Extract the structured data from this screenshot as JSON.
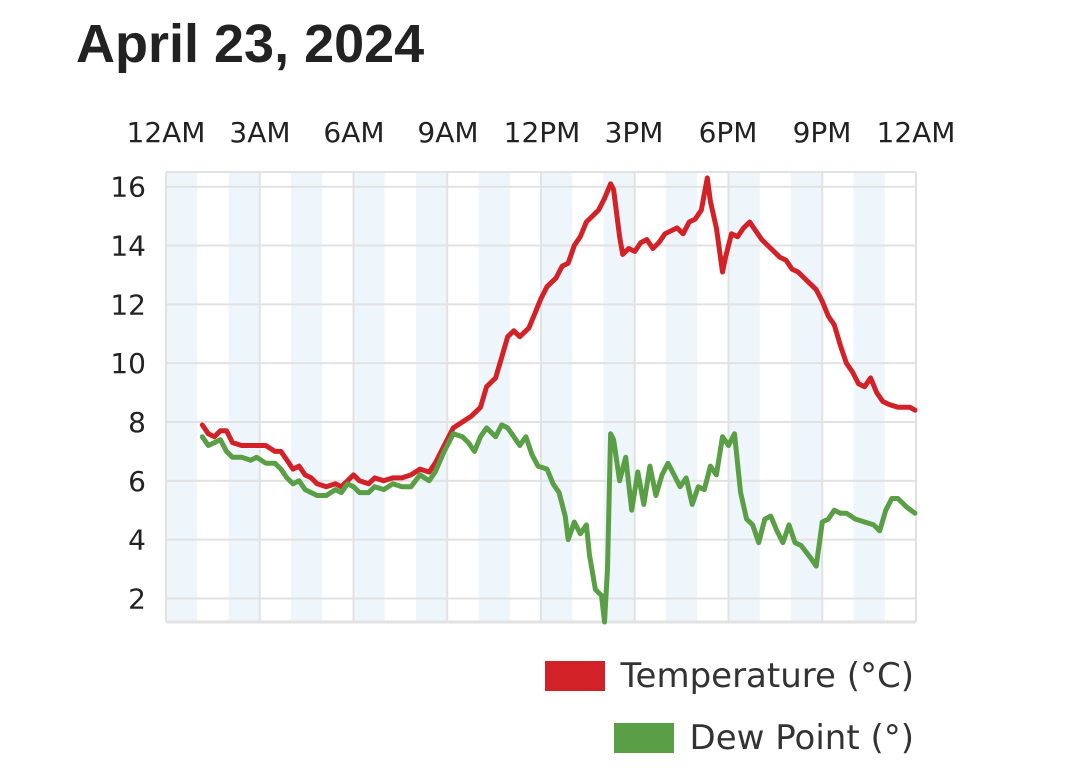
{
  "chart_data": {
    "type": "line",
    "title": "April 23, 2024",
    "x_unit": "hours",
    "xlim": [
      0,
      24
    ],
    "ylim": [
      1,
      16.5
    ],
    "x_ticks": [
      {
        "value": 0,
        "label": "12AM"
      },
      {
        "value": 3,
        "label": "3AM"
      },
      {
        "value": 6,
        "label": "6AM"
      },
      {
        "value": 9,
        "label": "9AM"
      },
      {
        "value": 12,
        "label": "12PM"
      },
      {
        "value": 15,
        "label": "3PM"
      },
      {
        "value": 18,
        "label": "6PM"
      },
      {
        "value": 21,
        "label": "9PM"
      },
      {
        "value": 24,
        "label": "12AM"
      }
    ],
    "y_ticks": [
      2,
      4,
      6,
      8,
      10,
      12,
      14,
      16
    ],
    "grid": true,
    "legend_position": "bottom-right",
    "background_bands_color": "#eef5fb",
    "grid_color": "#e2e2e2",
    "series": [
      {
        "name": "Temperature (°C)",
        "color": "#d32128",
        "points": [
          [
            1.2,
            7.9
          ],
          [
            1.4,
            7.6
          ],
          [
            1.6,
            7.5
          ],
          [
            1.8,
            7.7
          ],
          [
            2.0,
            7.7
          ],
          [
            2.2,
            7.3
          ],
          [
            2.5,
            7.2
          ],
          [
            2.8,
            7.2
          ],
          [
            3.0,
            7.2
          ],
          [
            3.3,
            7.2
          ],
          [
            3.6,
            7.0
          ],
          [
            3.8,
            7.0
          ],
          [
            4.0,
            6.7
          ],
          [
            4.2,
            6.4
          ],
          [
            4.4,
            6.5
          ],
          [
            4.6,
            6.2
          ],
          [
            4.8,
            6.1
          ],
          [
            5.0,
            5.9
          ],
          [
            5.3,
            5.8
          ],
          [
            5.6,
            5.9
          ],
          [
            5.8,
            5.8
          ],
          [
            6.0,
            6.0
          ],
          [
            6.2,
            6.2
          ],
          [
            6.4,
            6.0
          ],
          [
            6.7,
            5.9
          ],
          [
            6.9,
            6.1
          ],
          [
            7.2,
            6.0
          ],
          [
            7.5,
            6.1
          ],
          [
            7.8,
            6.1
          ],
          [
            8.1,
            6.2
          ],
          [
            8.4,
            6.4
          ],
          [
            8.7,
            6.3
          ],
          [
            8.9,
            6.6
          ],
          [
            9.2,
            7.2
          ],
          [
            9.5,
            7.8
          ],
          [
            9.8,
            8.0
          ],
          [
            10.1,
            8.2
          ],
          [
            10.4,
            8.5
          ],
          [
            10.6,
            9.2
          ],
          [
            10.9,
            9.5
          ],
          [
            11.1,
            10.2
          ],
          [
            11.3,
            10.9
          ],
          [
            11.5,
            11.1
          ],
          [
            11.7,
            10.9
          ],
          [
            12.0,
            11.2
          ],
          [
            12.2,
            11.7
          ],
          [
            12.4,
            12.2
          ],
          [
            12.6,
            12.6
          ],
          [
            12.9,
            12.9
          ],
          [
            13.1,
            13.3
          ],
          [
            13.3,
            13.4
          ],
          [
            13.5,
            14.0
          ],
          [
            13.7,
            14.3
          ],
          [
            13.9,
            14.8
          ],
          [
            14.1,
            15.0
          ],
          [
            14.3,
            15.2
          ],
          [
            14.5,
            15.6
          ],
          [
            14.7,
            16.1
          ],
          [
            14.8,
            15.9
          ],
          [
            15.0,
            14.3
          ],
          [
            15.1,
            13.7
          ],
          [
            15.3,
            13.9
          ],
          [
            15.5,
            13.8
          ],
          [
            15.7,
            14.1
          ],
          [
            15.9,
            14.2
          ],
          [
            16.1,
            13.9
          ],
          [
            16.3,
            14.1
          ],
          [
            16.5,
            14.4
          ],
          [
            16.7,
            14.5
          ],
          [
            16.9,
            14.6
          ],
          [
            17.1,
            14.4
          ],
          [
            17.3,
            14.8
          ],
          [
            17.5,
            14.9
          ],
          [
            17.7,
            15.2
          ],
          [
            17.9,
            16.3
          ],
          [
            18.0,
            15.5
          ],
          [
            18.2,
            14.6
          ],
          [
            18.4,
            13.1
          ],
          [
            18.5,
            13.6
          ],
          [
            18.7,
            14.4
          ],
          [
            18.9,
            14.3
          ],
          [
            19.1,
            14.6
          ],
          [
            19.3,
            14.8
          ],
          [
            19.5,
            14.5
          ],
          [
            19.7,
            14.2
          ],
          [
            19.9,
            14.0
          ],
          [
            20.1,
            13.8
          ],
          [
            20.3,
            13.6
          ],
          [
            20.5,
            13.5
          ],
          [
            20.7,
            13.2
          ],
          [
            20.9,
            13.1
          ],
          [
            21.1,
            12.9
          ],
          [
            21.3,
            12.7
          ],
          [
            21.5,
            12.5
          ],
          [
            21.7,
            12.1
          ],
          [
            21.9,
            11.6
          ],
          [
            22.1,
            11.3
          ],
          [
            22.3,
            10.6
          ],
          [
            22.5,
            10.0
          ],
          [
            22.7,
            9.7
          ],
          [
            22.9,
            9.3
          ],
          [
            23.1,
            9.2
          ],
          [
            23.3,
            9.5
          ],
          [
            23.5,
            9.0
          ],
          [
            23.7,
            8.7
          ],
          [
            23.9,
            8.6
          ],
          [
            24.2,
            8.5
          ],
          [
            24.6,
            8.5
          ],
          [
            24.8,
            8.4
          ]
        ]
      },
      {
        "name": "Dew Point (°)",
        "color": "#5a9e46",
        "points": [
          [
            1.2,
            7.5
          ],
          [
            1.4,
            7.2
          ],
          [
            1.6,
            7.3
          ],
          [
            1.8,
            7.4
          ],
          [
            2.0,
            7.0
          ],
          [
            2.2,
            6.8
          ],
          [
            2.5,
            6.8
          ],
          [
            2.8,
            6.7
          ],
          [
            3.0,
            6.8
          ],
          [
            3.3,
            6.6
          ],
          [
            3.6,
            6.6
          ],
          [
            3.8,
            6.4
          ],
          [
            4.0,
            6.1
          ],
          [
            4.2,
            5.9
          ],
          [
            4.4,
            6.0
          ],
          [
            4.6,
            5.7
          ],
          [
            4.8,
            5.6
          ],
          [
            5.0,
            5.5
          ],
          [
            5.3,
            5.5
          ],
          [
            5.6,
            5.7
          ],
          [
            5.8,
            5.6
          ],
          [
            6.0,
            5.9
          ],
          [
            6.2,
            5.8
          ],
          [
            6.4,
            5.6
          ],
          [
            6.7,
            5.6
          ],
          [
            6.9,
            5.8
          ],
          [
            7.2,
            5.7
          ],
          [
            7.5,
            5.9
          ],
          [
            7.8,
            5.8
          ],
          [
            8.1,
            5.8
          ],
          [
            8.4,
            6.2
          ],
          [
            8.7,
            6.0
          ],
          [
            8.9,
            6.3
          ],
          [
            9.2,
            7.0
          ],
          [
            9.5,
            7.6
          ],
          [
            9.8,
            7.5
          ],
          [
            10.0,
            7.3
          ],
          [
            10.2,
            7.0
          ],
          [
            10.4,
            7.5
          ],
          [
            10.6,
            7.8
          ],
          [
            10.9,
            7.5
          ],
          [
            11.1,
            7.9
          ],
          [
            11.3,
            7.8
          ],
          [
            11.5,
            7.5
          ],
          [
            11.7,
            7.2
          ],
          [
            11.9,
            7.5
          ],
          [
            12.1,
            6.9
          ],
          [
            12.3,
            6.5
          ],
          [
            12.6,
            6.4
          ],
          [
            12.8,
            5.9
          ],
          [
            13.0,
            5.6
          ],
          [
            13.2,
            4.8
          ],
          [
            13.3,
            4.0
          ],
          [
            13.5,
            4.6
          ],
          [
            13.7,
            4.2
          ],
          [
            13.9,
            4.5
          ],
          [
            14.0,
            3.5
          ],
          [
            14.2,
            2.3
          ],
          [
            14.4,
            2.1
          ],
          [
            14.5,
            1.2
          ],
          [
            14.6,
            3.0
          ],
          [
            14.7,
            7.6
          ],
          [
            14.8,
            7.4
          ],
          [
            15.0,
            6.0
          ],
          [
            15.2,
            6.8
          ],
          [
            15.4,
            5.0
          ],
          [
            15.6,
            6.3
          ],
          [
            15.8,
            5.2
          ],
          [
            16.0,
            6.5
          ],
          [
            16.2,
            5.5
          ],
          [
            16.4,
            6.2
          ],
          [
            16.6,
            6.6
          ],
          [
            16.8,
            6.2
          ],
          [
            17.0,
            5.8
          ],
          [
            17.2,
            6.1
          ],
          [
            17.4,
            5.2
          ],
          [
            17.6,
            5.8
          ],
          [
            17.8,
            5.7
          ],
          [
            18.0,
            6.5
          ],
          [
            18.2,
            6.2
          ],
          [
            18.4,
            7.5
          ],
          [
            18.6,
            7.2
          ],
          [
            18.8,
            7.6
          ],
          [
            19.0,
            5.6
          ],
          [
            19.2,
            4.7
          ],
          [
            19.4,
            4.5
          ],
          [
            19.6,
            3.9
          ],
          [
            19.8,
            4.7
          ],
          [
            20.0,
            4.8
          ],
          [
            20.2,
            4.3
          ],
          [
            20.4,
            3.9
          ],
          [
            20.6,
            4.5
          ],
          [
            20.8,
            3.9
          ],
          [
            21.0,
            3.8
          ],
          [
            21.3,
            3.4
          ],
          [
            21.5,
            3.1
          ],
          [
            21.7,
            4.6
          ],
          [
            21.9,
            4.7
          ],
          [
            22.1,
            5.0
          ],
          [
            22.3,
            4.9
          ],
          [
            22.5,
            4.9
          ],
          [
            22.8,
            4.7
          ],
          [
            23.1,
            4.6
          ],
          [
            23.4,
            4.5
          ],
          [
            23.6,
            4.3
          ],
          [
            23.8,
            5.0
          ],
          [
            24.0,
            5.4
          ],
          [
            24.2,
            5.4
          ],
          [
            24.5,
            5.1
          ],
          [
            24.8,
            4.9
          ]
        ]
      }
    ]
  }
}
